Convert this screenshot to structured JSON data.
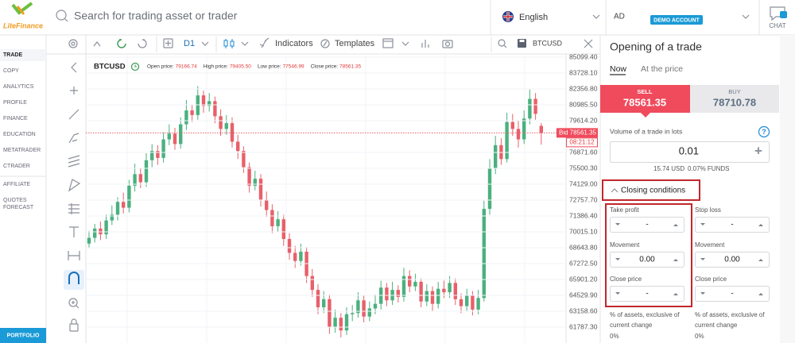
{
  "top_bar": {
    "logo": "LiteFinance",
    "search_placeholder": "Search for trading asset or trader",
    "language": "English",
    "account": "AD",
    "account_badge": "DEMO ACCOUNT",
    "chat": "CHAT"
  },
  "nav": {
    "items": [
      "TRADE",
      "COPY",
      "ANALYTICS",
      "PROFILE",
      "FINANCE",
      "EDUCATION",
      "METATRADER",
      "CTRADER",
      "AFFILIATE"
    ],
    "quotes_forecast": [
      "QUOTES",
      "FORECAST"
    ],
    "portfolio": "PORTFOLIO"
  },
  "toolbar": {
    "timeframe": "D1",
    "indicators": "Indicators",
    "templates": "Templates",
    "symbol": "BTCUSD"
  },
  "chart": {
    "symbol": "BTCUSD",
    "ohlc": [
      {
        "label": "Open price:",
        "value": "79166.74"
      },
      {
        "label": "High price:",
        "value": "79405.50"
      },
      {
        "label": "Low price:",
        "value": "77546.99"
      },
      {
        "label": "Close price:",
        "value": "78561.35"
      }
    ],
    "ylim": [
      60416,
      85511
    ],
    "price_ticks": [
      {
        "value": 85099.4,
        "label": "85099.40"
      },
      {
        "value": 83728.1,
        "label": "83728.10"
      },
      {
        "value": 82356.8,
        "label": "82356.80"
      },
      {
        "value": 80985.5,
        "label": "80985.50"
      },
      {
        "value": 79614.2,
        "label": "79614.20"
      },
      {
        "value": 76871.6,
        "label": "76871.60"
      },
      {
        "value": 75500.3,
        "label": "75500.30"
      },
      {
        "value": 74129,
        "label": "74129.00"
      },
      {
        "value": 72757.7,
        "label": "72757.70"
      },
      {
        "value": 71386.4,
        "label": "71386.40"
      },
      {
        "value": 70015.1,
        "label": "70015.10"
      },
      {
        "value": 68643.8,
        "label": "68643.80"
      },
      {
        "value": 67272.5,
        "label": "67272.50"
      },
      {
        "value": 65901.2,
        "label": "65901.20"
      },
      {
        "value": 64529.9,
        "label": "64529.90"
      },
      {
        "value": 63158.6,
        "label": "63158.60"
      },
      {
        "value": 61787.3,
        "label": "61787.30"
      }
    ],
    "bid_label": "Bid",
    "bid": 78561.35,
    "countdown": "08:21:12",
    "up_color": "#4bb07f",
    "down_color": "#e8606a",
    "candles": [
      [
        69000,
        70100,
        68600,
        69500
      ],
      [
        69500,
        70700,
        69100,
        70300
      ],
      [
        70300,
        70900,
        69300,
        69800
      ],
      [
        69800,
        71500,
        69400,
        71000
      ],
      [
        71000,
        72300,
        70600,
        71500
      ],
      [
        71500,
        73000,
        71000,
        72600
      ],
      [
        72600,
        73400,
        71600,
        72100
      ],
      [
        72100,
        74500,
        71700,
        74000
      ],
      [
        74000,
        75900,
        73500,
        75000
      ],
      [
        75000,
        75500,
        73800,
        74300
      ],
      [
        74300,
        76800,
        73900,
        76200
      ],
      [
        76200,
        77600,
        75600,
        77000
      ],
      [
        77000,
        77500,
        75800,
        76400
      ],
      [
        76400,
        78600,
        76000,
        78000
      ],
      [
        78000,
        79300,
        77500,
        78500
      ],
      [
        78500,
        79000,
        77100,
        77600
      ],
      [
        77600,
        79900,
        77200,
        79300
      ],
      [
        79300,
        81400,
        78800,
        80500
      ],
      [
        80500,
        81000,
        79500,
        80100
      ],
      [
        80100,
        82600,
        79700,
        81800
      ],
      [
        81800,
        82200,
        80300,
        80900
      ],
      [
        80900,
        82000,
        80400,
        81300
      ],
      [
        81300,
        81700,
        79400,
        80000
      ],
      [
        80000,
        80600,
        78300,
        78900
      ],
      [
        78900,
        80100,
        78400,
        79400
      ],
      [
        79400,
        79900,
        77300,
        77800
      ],
      [
        77800,
        78400,
        76300,
        77000
      ],
      [
        77000,
        77400,
        75100,
        75600
      ],
      [
        75600,
        76000,
        73400,
        74000
      ],
      [
        74000,
        75300,
        73600,
        74600
      ],
      [
        74600,
        75000,
        72200,
        72800
      ],
      [
        72800,
        73500,
        71300,
        71900
      ],
      [
        71900,
        72400,
        69900,
        70500
      ],
      [
        70500,
        71800,
        70000,
        71100
      ],
      [
        71100,
        71500,
        68800,
        69400
      ],
      [
        69400,
        69900,
        67600,
        68200
      ],
      [
        68200,
        68800,
        66900,
        67500
      ],
      [
        67500,
        69000,
        67100,
        68300
      ],
      [
        68300,
        68700,
        65600,
        66200
      ],
      [
        66200,
        66800,
        64400,
        65000
      ],
      [
        65000,
        65500,
        62900,
        63500
      ],
      [
        63500,
        64900,
        63000,
        64200
      ],
      [
        64200,
        64600,
        61200,
        61800
      ],
      [
        61800,
        63300,
        61300,
        62600
      ],
      [
        62600,
        63000,
        60900,
        61500
      ],
      [
        61500,
        63500,
        61100,
        62900
      ],
      [
        62900,
        63700,
        62300,
        63000
      ],
      [
        63000,
        64800,
        62600,
        64100
      ],
      [
        64100,
        64500,
        62200,
        62700
      ],
      [
        62700,
        64000,
        62300,
        63400
      ],
      [
        63400,
        64600,
        62900,
        63800
      ],
      [
        63800,
        65800,
        63300,
        65200
      ],
      [
        65200,
        65600,
        63600,
        64100
      ],
      [
        64100,
        65700,
        63700,
        65000
      ],
      [
        65000,
        65400,
        63900,
        64400
      ],
      [
        64400,
        66900,
        64000,
        66200
      ],
      [
        66200,
        66700,
        64800,
        65300
      ],
      [
        65300,
        66400,
        64900,
        65700
      ],
      [
        65700,
        66000,
        63500,
        64000
      ],
      [
        64000,
        65500,
        63600,
        64900
      ],
      [
        64900,
        65300,
        63200,
        63800
      ],
      [
        63800,
        65700,
        63400,
        65100
      ],
      [
        65100,
        65800,
        64300,
        64800
      ],
      [
        64800,
        66200,
        64300,
        65600
      ],
      [
        65600,
        66000,
        63700,
        64200
      ],
      [
        64200,
        64700,
        63000,
        63600
      ],
      [
        63600,
        65100,
        63200,
        64500
      ],
      [
        64500,
        64900,
        62800,
        63300
      ],
      [
        63300,
        65000,
        62900,
        64300
      ],
      [
        64300,
        72700,
        64000,
        72000
      ],
      [
        72000,
        76300,
        71500,
        75500
      ],
      [
        75500,
        78300,
        75000,
        77500
      ],
      [
        77500,
        78100,
        75800,
        76300
      ],
      [
        76300,
        80300,
        76000,
        79500
      ],
      [
        79500,
        80200,
        78300,
        78900
      ],
      [
        78900,
        79600,
        77300,
        78000
      ],
      [
        78000,
        80500,
        77600,
        79800
      ],
      [
        79800,
        82300,
        79300,
        81500
      ],
      [
        81500,
        82000,
        79700,
        80200
      ],
      [
        79166.74,
        79405.5,
        77546.99,
        78561.35
      ]
    ]
  },
  "panel": {
    "title": "Opening of a trade",
    "tabs": [
      "Now",
      "At the price"
    ],
    "sell": {
      "label": "SELL",
      "price": "78561.35"
    },
    "buy": {
      "label": "BUY",
      "price": "78710.78"
    },
    "volume_label": "Volume of a trade in lots",
    "help": "?",
    "volume": "0.01",
    "plus": "+",
    "cost": "15.74 USD",
    "funds": "0.07% FUNDS",
    "closing_conditions": "Closing conditions",
    "columns": [
      {
        "title": "Take profit",
        "value": "-",
        "movement_label": "Movement",
        "movement": "0.00",
        "close_label": "Close price",
        "close": "-",
        "note": [
          "% of assets, exclusive of",
          "current change"
        ],
        "percent": "0%"
      },
      {
        "title": "Stop loss",
        "value": "-",
        "movement_label": "Movement",
        "movement": "0.00",
        "close_label": "Close price",
        "close": "-",
        "note": [
          "% of assets, exclusive of",
          "current change"
        ],
        "percent": "0%"
      }
    ]
  }
}
